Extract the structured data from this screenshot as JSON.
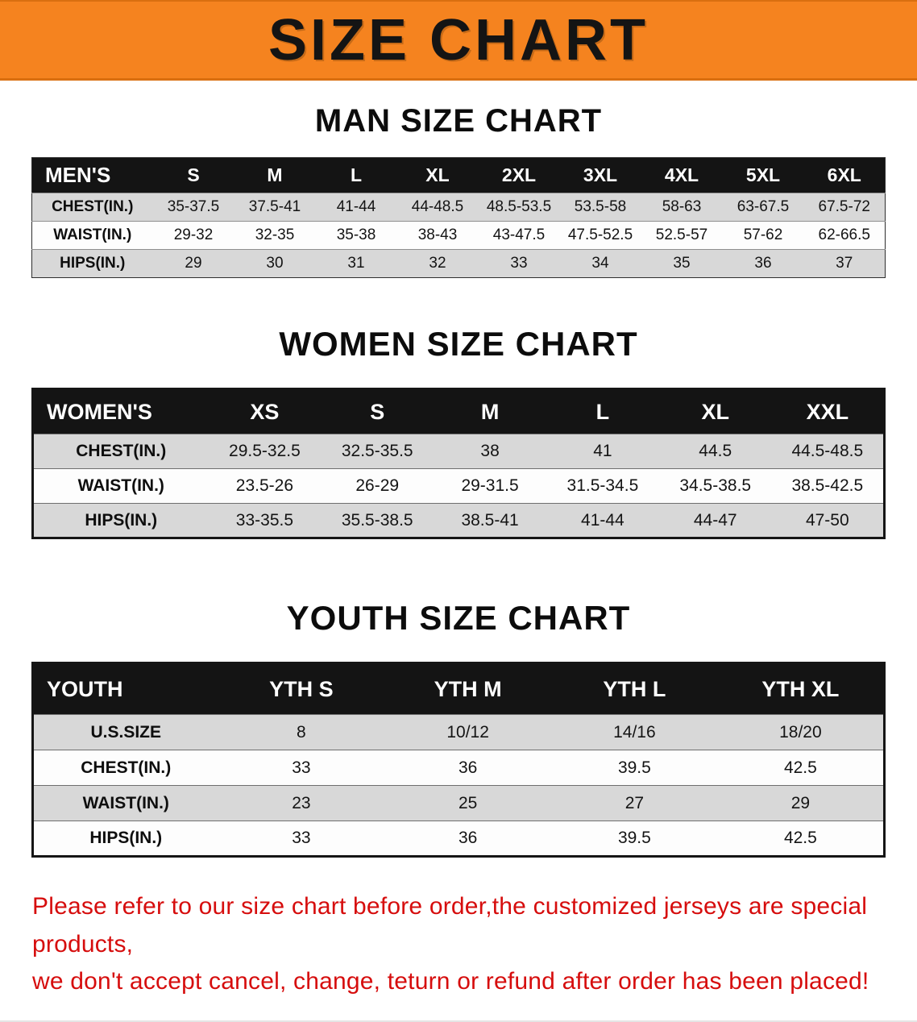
{
  "banner": {
    "title": "SIZE CHART"
  },
  "sections": [
    {
      "heading": "MAN SIZE CHART",
      "table": {
        "header": [
          "MEN'S",
          "S",
          "M",
          "L",
          "XL",
          "2XL",
          "3XL",
          "4XL",
          "5XL",
          "6XL"
        ],
        "rows": [
          [
            "CHEST(IN.)",
            "35-37.5",
            "37.5-41",
            "41-44",
            "44-48.5",
            "48.5-53.5",
            "53.5-58",
            "58-63",
            "63-67.5",
            "67.5-72"
          ],
          [
            "WAIST(IN.)",
            "29-32",
            "32-35",
            "35-38",
            "38-43",
            "43-47.5",
            "47.5-52.5",
            "52.5-57",
            "57-62",
            "62-66.5"
          ],
          [
            "HIPS(IN.)",
            "29",
            "30",
            "31",
            "32",
            "33",
            "34",
            "35",
            "36",
            "37"
          ]
        ]
      }
    },
    {
      "heading": "WOMEN SIZE CHART",
      "table": {
        "header": [
          "WOMEN'S",
          "XS",
          "S",
          "M",
          "L",
          "XL",
          "XXL"
        ],
        "rows": [
          [
            "CHEST(IN.)",
            "29.5-32.5",
            "32.5-35.5",
            "38",
            "41",
            "44.5",
            "44.5-48.5"
          ],
          [
            "WAIST(IN.)",
            "23.5-26",
            "26-29",
            "29-31.5",
            "31.5-34.5",
            "34.5-38.5",
            "38.5-42.5"
          ],
          [
            "HIPS(IN.)",
            "33-35.5",
            "35.5-38.5",
            "38.5-41",
            "41-44",
            "44-47",
            "47-50"
          ]
        ]
      }
    },
    {
      "heading": "YOUTH SIZE CHART",
      "table": {
        "header": [
          "YOUTH",
          "YTH S",
          "YTH M",
          "YTH L",
          "YTH XL"
        ],
        "rows": [
          [
            "U.S.SIZE",
            "8",
            "10/12",
            "14/16",
            "18/20"
          ],
          [
            "CHEST(IN.)",
            "33",
            "36",
            "39.5",
            "42.5"
          ],
          [
            "WAIST(IN.)",
            "23",
            "25",
            "27",
            "29"
          ],
          [
            "HIPS(IN.)",
            "33",
            "36",
            "39.5",
            "42.5"
          ]
        ]
      }
    }
  ],
  "disclaimer": {
    "line1": "Please refer to our size chart before order,the customized jerseys are special products,",
    "line2": "we don't accept cancel, change, teturn or refund after order has been placed!"
  },
  "colors": {
    "banner_orange": "#F5831F",
    "header_black": "#141414",
    "row_gray": "#D8D8D8",
    "disclaimer_red": "#D60D0D"
  }
}
